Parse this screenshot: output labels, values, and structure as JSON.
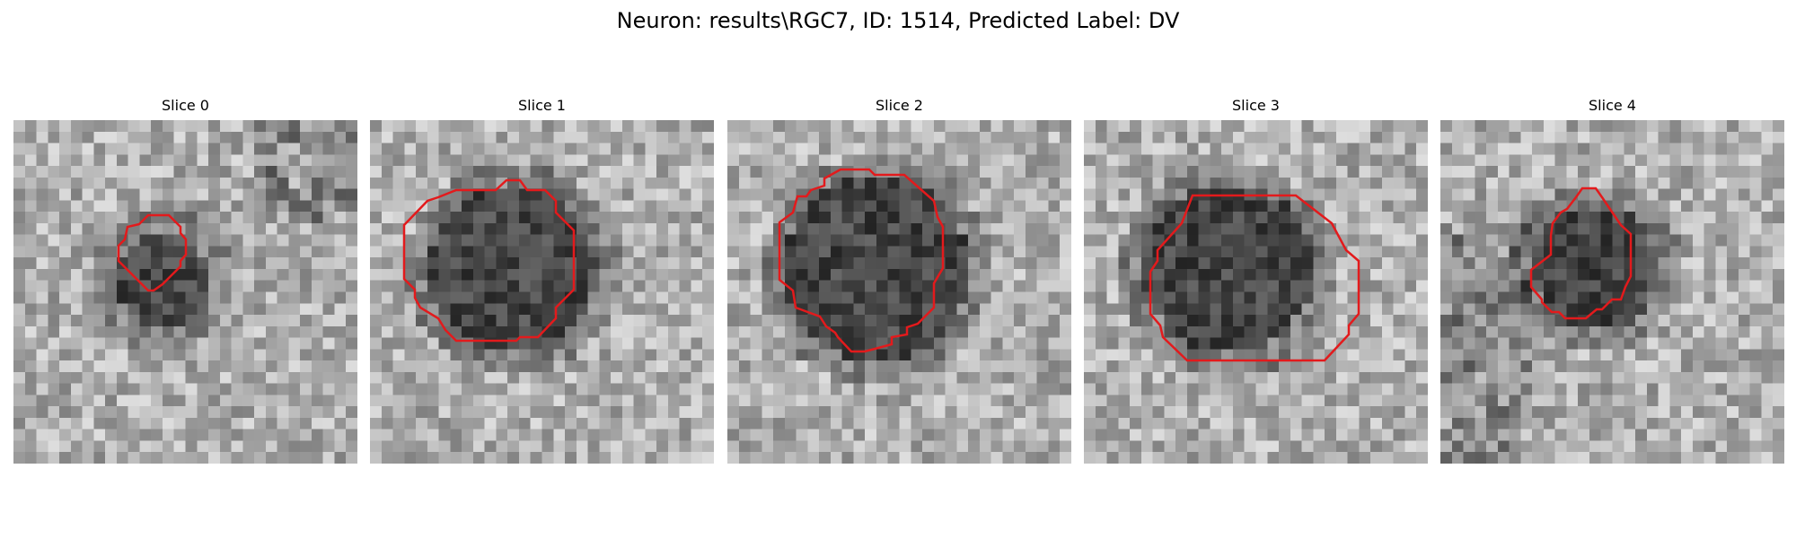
{
  "figure": {
    "title": "Neuron: results\\RGC7, ID: 1514, Predicted Label: DV"
  },
  "colors": {
    "contour": "#e31a1c",
    "background": "#ffffff"
  },
  "panels": [
    {
      "title": "Slice 0"
    },
    {
      "title": "Slice 1"
    },
    {
      "title": "Slice 2"
    },
    {
      "title": "Slice 3"
    },
    {
      "title": "Slice 4"
    }
  ]
}
